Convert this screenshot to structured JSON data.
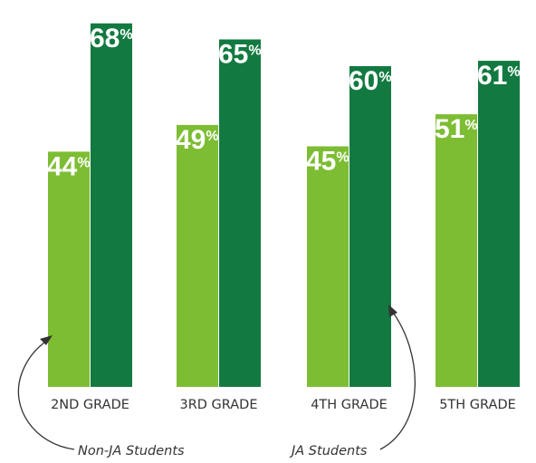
{
  "chart_data": {
    "type": "bar",
    "categories": [
      "2ND GRADE",
      "3RD GRADE",
      "4TH GRADE",
      "5TH GRADE"
    ],
    "series": [
      {
        "name": "Non-JA Students",
        "values": [
          44,
          49,
          45,
          51
        ],
        "color": "#7dbd33"
      },
      {
        "name": "JA Students",
        "values": [
          68,
          65,
          60,
          61
        ],
        "color": "#127a41"
      }
    ],
    "value_suffix": "%",
    "ylim": [
      0,
      100
    ],
    "grid": false,
    "legend": "annotations with arrows below bars"
  },
  "annotations": {
    "non_ja": "Non-JA Students",
    "ja": "JA Students"
  }
}
